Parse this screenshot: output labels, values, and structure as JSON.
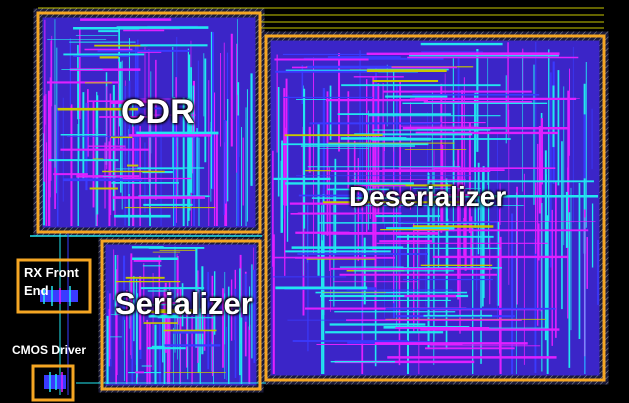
{
  "blocks": {
    "cdr": {
      "label": "CDR"
    },
    "deserializer": {
      "label": "Deserializer"
    },
    "serializer": {
      "label": "Serializer"
    },
    "rx_front_end": {
      "label_line1": "RX Front",
      "label_line2": "End"
    },
    "cmos_driver": {
      "label": "CMOS Driver"
    }
  },
  "colors": {
    "background": "#000000",
    "outline": "#f5a623",
    "magenta": "#e020ff",
    "cyan": "#22e6f0",
    "blue": "#3a3aff",
    "yellow": "#c8c800"
  }
}
